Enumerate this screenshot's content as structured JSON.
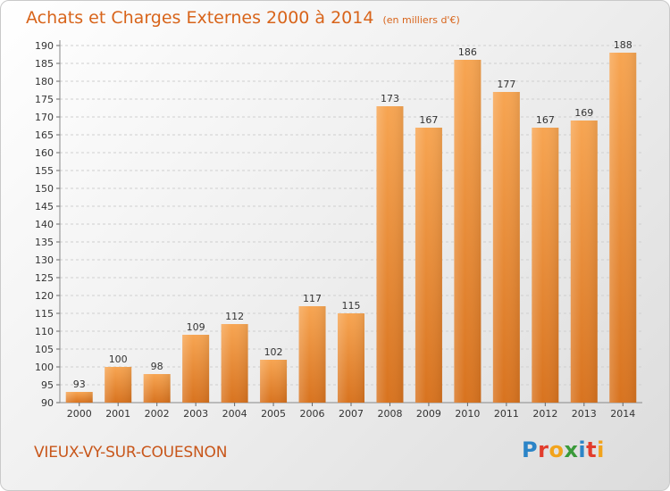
{
  "header": {
    "title": "Achats et Charges Externes 2000 à 2014",
    "subtitle": "(en milliers d'€)"
  },
  "footer": {
    "commune": "VIEUX-VY-SUR-COUESNON",
    "logo_letters": [
      {
        "ch": "P",
        "color": "#2b84c7"
      },
      {
        "ch": "r",
        "color": "#e23c2c"
      },
      {
        "ch": "o",
        "color": "#f2a31b"
      },
      {
        "ch": "x",
        "color": "#3a9a3a"
      },
      {
        "ch": "i",
        "color": "#2b84c7"
      },
      {
        "ch": "t",
        "color": "#e23c2c"
      },
      {
        "ch": "i",
        "color": "#f2a31b"
      }
    ]
  },
  "colors": {
    "accent": "#d8641a",
    "bar_top": "#f7a552",
    "bar_bottom": "#d8731f",
    "grid": "#cfcfcf"
  },
  "chart_data": {
    "type": "bar",
    "categories": [
      "2000",
      "2001",
      "2002",
      "2003",
      "2004",
      "2005",
      "2006",
      "2007",
      "2008",
      "2009",
      "2010",
      "2011",
      "2012",
      "2013",
      "2014"
    ],
    "values": [
      93,
      100,
      98,
      109,
      112,
      102,
      117,
      115,
      173,
      167,
      186,
      177,
      167,
      169,
      188
    ],
    "ylim": [
      90,
      190
    ],
    "ytick_step": 5,
    "grid": true,
    "data_labels": true
  }
}
